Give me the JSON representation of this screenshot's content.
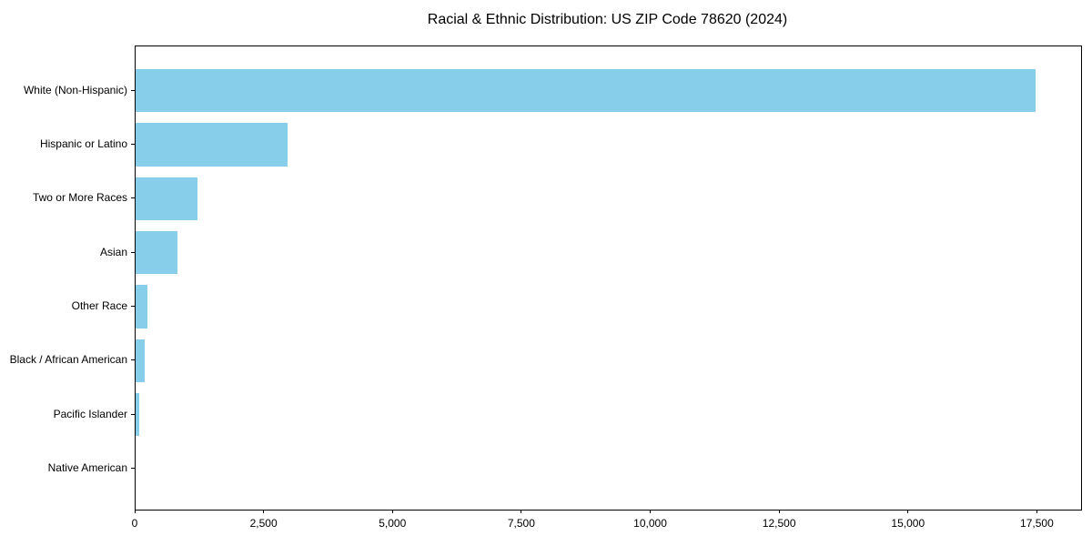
{
  "chart_data": {
    "type": "bar",
    "orientation": "horizontal",
    "title": "Racial & Ethnic Distribution: US ZIP Code 78620 (2024)",
    "categories": [
      "White (Non-Hispanic)",
      "Hispanic or Latino",
      "Two or More Races",
      "Asian",
      "Other Race",
      "Black / African American",
      "Pacific Islander",
      "Native American"
    ],
    "values": [
      17450,
      2950,
      1200,
      820,
      230,
      170,
      65,
      0
    ],
    "xlabel": "",
    "ylabel": "",
    "xlim": [
      0,
      18340
    ],
    "x_ticks": [
      0,
      2500,
      5000,
      7500,
      10000,
      12500,
      15000,
      17500
    ],
    "x_tick_labels": [
      "0",
      "2,500",
      "5,000",
      "7,500",
      "10,000",
      "12,500",
      "15,000",
      "17,500"
    ],
    "bar_color": "#87CEEB",
    "background_color": "#FFFFFF",
    "grid": false,
    "legend": null
  }
}
